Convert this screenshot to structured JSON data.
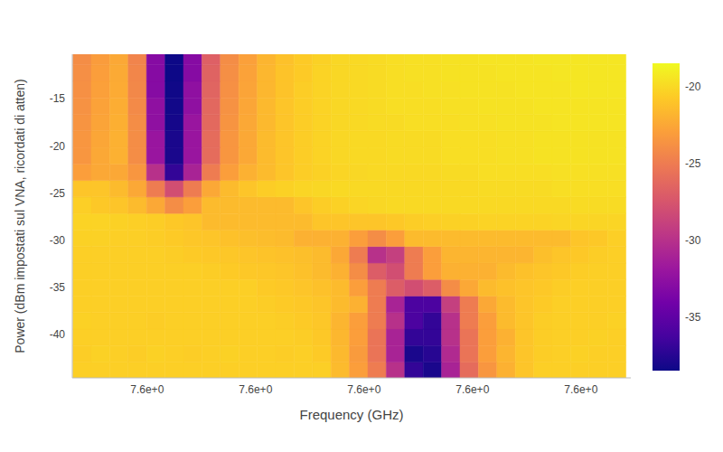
{
  "chart_data": {
    "type": "heatmap",
    "x_label": "Frequency (GHz)",
    "y_label": "Power (dBm impostati sul VNA, ricordati di atten)",
    "xlim": [
      7.5831,
      7.6346
    ],
    "xticks": [
      {
        "value": 7.59,
        "label": "7.6e+0"
      },
      {
        "value": 7.6,
        "label": "7.6e+0"
      },
      {
        "value": 7.61,
        "label": "7.6e+0"
      },
      {
        "value": 7.62,
        "label": "7.6e+0"
      },
      {
        "value": 7.63,
        "label": "7.6e+0"
      }
    ],
    "ylim": [
      -44.6,
      -10.3
    ],
    "yticks": [
      -40,
      -35,
      -30,
      -25,
      -20,
      -15
    ],
    "grid": false,
    "colorbar": {
      "range": [
        -38.5,
        -18.5
      ],
      "ticks": [
        -35,
        -30,
        -25,
        -20
      ]
    },
    "x": [
      7.584,
      7.5857,
      7.5874,
      7.5891,
      7.5908,
      7.5925,
      7.5942,
      7.5959,
      7.5976,
      7.5993,
      7.601,
      7.6027,
      7.6044,
      7.6061,
      7.6078,
      7.6095,
      7.6112,
      7.6129,
      7.6146,
      7.6163,
      7.618,
      7.6197,
      7.6214,
      7.6231,
      7.6248,
      7.6265,
      7.6282,
      7.6299,
      7.6316,
      7.6333
    ],
    "y": [
      -43.8,
      -42.05,
      -40.3,
      -38.55,
      -36.8,
      -35.05,
      -33.3,
      -31.55,
      -29.8,
      -28.05,
      -26.3,
      -24.55,
      -22.8,
      -21.05,
      -19.3,
      -17.55,
      -15.8,
      -14.05,
      -12.3,
      -10.55
    ],
    "z": [
      [
        -20.5,
        -20.5,
        -20.5,
        -20.5,
        -20.5,
        -20.5,
        -20.5,
        -20.5,
        -20.5,
        -20.5,
        -20.5,
        -20.5,
        -20.5,
        -20.5,
        -21.5,
        -23,
        -25,
        -30,
        -37,
        -38,
        -31,
        -26,
        -23.5,
        -22,
        -21,
        -20.5,
        -20.5,
        -20.5,
        -20.5,
        -20.5
      ],
      [
        -20.6,
        -20.4,
        -20.5,
        -20.6,
        -20.4,
        -20.5,
        -20.6,
        -20.5,
        -20.4,
        -20.5,
        -20.5,
        -20.6,
        -20.5,
        -20.7,
        -21.6,
        -23.2,
        -25.5,
        -31,
        -38,
        -37.5,
        -30.5,
        -25.5,
        -23,
        -21.8,
        -21,
        -20.6,
        -20.5,
        -20.4,
        -20.5,
        -20.5
      ],
      [
        -20.5,
        -20.5,
        -20.5,
        -20.5,
        -20.5,
        -20.5,
        -20.5,
        -20.5,
        -20.5,
        -20.5,
        -20.5,
        -20.5,
        -20.6,
        -20.8,
        -21.7,
        -23,
        -25.5,
        -31,
        -37,
        -37,
        -30,
        -25.5,
        -23,
        -22,
        -21,
        -20.6,
        -20.5,
        -20.5,
        -20.4,
        -20.5
      ],
      [
        -20.4,
        -20.5,
        -20.5,
        -20.5,
        -20.6,
        -20.5,
        -20.5,
        -20.5,
        -20.5,
        -20.5,
        -20.5,
        -20.6,
        -20.7,
        -20.9,
        -21.8,
        -23,
        -25,
        -30,
        -36,
        -37,
        -30,
        -25,
        -23,
        -21.5,
        -21,
        -20.6,
        -20.5,
        -20.5,
        -20.5,
        -20.4
      ],
      [
        -20.5,
        -20.5,
        -20.5,
        -20.5,
        -20.5,
        -20.5,
        -20.5,
        -20.5,
        -20.5,
        -20.5,
        -20.6,
        -20.7,
        -20.8,
        -21,
        -21.5,
        -22,
        -25,
        -31,
        -36,
        -36,
        -29,
        -25,
        -22.5,
        -21.5,
        -21,
        -20.7,
        -20.5,
        -20.5,
        -20.5,
        -20.5
      ],
      [
        -20.5,
        -20.5,
        -20.5,
        -20.5,
        -20.5,
        -20.5,
        -20.5,
        -20.5,
        -20.5,
        -20.5,
        -20.7,
        -20.8,
        -21,
        -21.2,
        -21.5,
        -23,
        -25,
        -27,
        -28,
        -27,
        -24,
        -22.5,
        -21.5,
        -21.2,
        -21,
        -20.8,
        -20.6,
        -20.5,
        -20.5,
        -20.5
      ],
      [
        -20.5,
        -20.5,
        -20.5,
        -20.5,
        -20.5,
        -20.5,
        -20.5,
        -20.6,
        -20.7,
        -20.8,
        -20.9,
        -21,
        -21.2,
        -21.5,
        -22,
        -24,
        -27,
        -28,
        -25,
        -23,
        -22,
        -22,
        -22,
        -21.5,
        -21.2,
        -21,
        -20.8,
        -20.6,
        -20.5,
        -20.5
      ],
      [
        -20.5,
        -20.5,
        -20.5,
        -20.5,
        -20.5,
        -20.6,
        -20.7,
        -20.8,
        -20.9,
        -21,
        -21.1,
        -21.2,
        -21.3,
        -21.5,
        -22.5,
        -25,
        -30,
        -29,
        -25,
        -23,
        -21.8,
        -21.8,
        -21.8,
        -21.8,
        -21.8,
        -21.3,
        -21,
        -20.8,
        -20.6,
        -20.5
      ],
      [
        -20.4,
        -20.4,
        -20.5,
        -20.5,
        -20.6,
        -20.7,
        -20.9,
        -21,
        -21.2,
        -21.3,
        -21.4,
        -21.5,
        -22,
        -22,
        -22,
        -23,
        -24,
        -23,
        -21.5,
        -21.5,
        -21.5,
        -21.5,
        -21.5,
        -21.5,
        -21.5,
        -21.5,
        -21.5,
        -21,
        -20.8,
        -20.5
      ],
      [
        -20.3,
        -20.3,
        -20.4,
        -20.5,
        -20.6,
        -20.8,
        -21,
        -21.5,
        -21.5,
        -21.5,
        -21.5,
        -21.5,
        -21.5,
        -21,
        -21,
        -21,
        -21,
        -20.8,
        -20.6,
        -20.5,
        -20.4,
        -20.4,
        -20.3,
        -20.3,
        -20.3,
        -20.3,
        -20.2,
        -20.2,
        -20.2,
        -20.2
      ],
      [
        -20.5,
        -20.8,
        -21,
        -21.5,
        -22.5,
        -24,
        -23,
        -21.5,
        -21.5,
        -21.5,
        -21.5,
        -21.5,
        -21,
        -20.6,
        -20.4,
        -20.2,
        -20.1,
        -20,
        -20,
        -20,
        -20,
        -20,
        -20,
        -20,
        -20,
        -20,
        -20,
        -19.9,
        -19.9,
        -19.9
      ],
      [
        -21,
        -21,
        -21.5,
        -22.5,
        -25,
        -28,
        -25,
        -22.5,
        -21.5,
        -21,
        -20.6,
        -20.4,
        -20.2,
        -20.1,
        -20,
        -20,
        -20,
        -20,
        -20,
        -20,
        -20,
        -20,
        -19.9,
        -19.9,
        -19.9,
        -19.9,
        -19.8,
        -19.8,
        -19.8,
        -19.8
      ],
      [
        -23,
        -22.5,
        -22.5,
        -23.5,
        -30,
        -37,
        -31,
        -25,
        -23,
        -22,
        -21.5,
        -21,
        -20.6,
        -20.4,
        -20.2,
        -20.1,
        -20,
        -20,
        -20,
        -20,
        -19.9,
        -19.9,
        -19.8,
        -19.8,
        -19.8,
        -19.8,
        -19.7,
        -19.7,
        -19.7,
        -19.7
      ],
      [
        -23.5,
        -22.5,
        -22,
        -24,
        -32,
        -38,
        -32,
        -26,
        -23.5,
        -22.5,
        -21.5,
        -21,
        -20.6,
        -20.3,
        -20.1,
        -20,
        -20,
        -19.9,
        -19.9,
        -19.9,
        -19.8,
        -19.8,
        -19.8,
        -19.7,
        -19.7,
        -19.6,
        -19.6,
        -19.6,
        -19.6,
        -19.6
      ],
      [
        -23.5,
        -22.6,
        -22,
        -24,
        -32,
        -38,
        -32,
        -26,
        -23.5,
        -22.5,
        -21.5,
        -21,
        -20.6,
        -20.3,
        -20.1,
        -20,
        -20,
        -19.9,
        -19.9,
        -19.9,
        -19.8,
        -19.8,
        -19.8,
        -19.7,
        -19.7,
        -19.6,
        -19.6,
        -19.6,
        -19.6,
        -19.6
      ],
      [
        -23.6,
        -22.7,
        -22.1,
        -24,
        -32.5,
        -38.2,
        -32,
        -26.2,
        -23.6,
        -22.5,
        -21.6,
        -21,
        -20.6,
        -20.3,
        -20.1,
        -20,
        -19.9,
        -19.9,
        -19.8,
        -19.8,
        -19.8,
        -19.7,
        -19.7,
        -19.6,
        -19.6,
        -19.6,
        -19.5,
        -19.5,
        -19.5,
        -19.5
      ],
      [
        -23.7,
        -22.8,
        -22.2,
        -24.2,
        -32.5,
        -38.3,
        -32.5,
        -26.3,
        -23.7,
        -22.6,
        -21.6,
        -21,
        -20.6,
        -20.3,
        -20.1,
        -20,
        -19.9,
        -19.8,
        -19.8,
        -19.8,
        -19.7,
        -19.7,
        -19.6,
        -19.6,
        -19.6,
        -19.5,
        -19.5,
        -19.5,
        -19.5,
        -19.5
      ],
      [
        -23.8,
        -22.9,
        -22.3,
        -24.3,
        -33,
        -38.4,
        -32.5,
        -26.5,
        -23.8,
        -22.7,
        -21.7,
        -21.1,
        -20.6,
        -20.3,
        -20.1,
        -20,
        -19.9,
        -19.8,
        -19.8,
        -19.7,
        -19.7,
        -19.6,
        -19.6,
        -19.6,
        -19.5,
        -19.5,
        -19.5,
        -19.4,
        -19.4,
        -19.4
      ],
      [
        -23.9,
        -23,
        -22.4,
        -24.4,
        -33,
        -38.5,
        -33,
        -26.6,
        -23.9,
        -22.8,
        -21.7,
        -21.1,
        -20.7,
        -20.3,
        -20.1,
        -20,
        -19.9,
        -19.8,
        -19.7,
        -19.7,
        -19.6,
        -19.6,
        -19.6,
        -19.5,
        -19.5,
        -19.5,
        -19.4,
        -19.4,
        -19.4,
        -19.4
      ],
      [
        -24,
        -23.1,
        -22.5,
        -24.5,
        -33,
        -38.5,
        -33,
        -26.8,
        -24,
        -22.9,
        -21.8,
        -21.2,
        -20.7,
        -20.4,
        -20.1,
        -20,
        -19.9,
        -19.8,
        -19.7,
        -19.7,
        -19.6,
        -19.6,
        -19.5,
        -19.5,
        -19.5,
        -19.4,
        -19.4,
        -19.4,
        -19.4,
        -19.4
      ]
    ]
  }
}
